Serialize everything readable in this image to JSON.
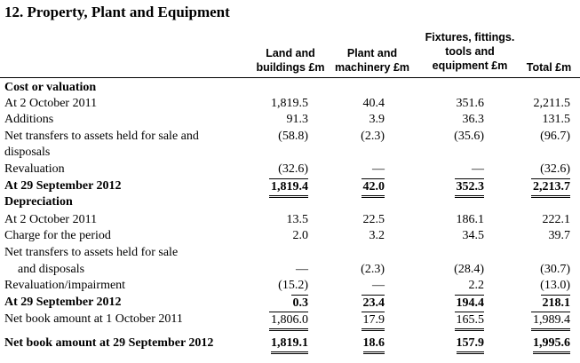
{
  "title": "12. Property, Plant and Equipment",
  "headers": {
    "land": [
      "Land and",
      "buildings £m"
    ],
    "plant": [
      "Plant and",
      "machinery £m"
    ],
    "fixtures": [
      "Fixtures, fittings.",
      "tools and",
      "equipment £m"
    ],
    "total": [
      "Total £m"
    ]
  },
  "rows": [
    {
      "label": "Cost or valuation",
      "bold": true,
      "values": [
        "",
        "",
        "",
        ""
      ]
    },
    {
      "label": "At 2 October 2011",
      "values": [
        "1,819.5",
        "40.4",
        "351.6",
        "2,211.5"
      ]
    },
    {
      "label": "Additions",
      "values": [
        "91.3",
        "3.9",
        "36.3",
        "131.5"
      ]
    },
    {
      "label": "Net transfers to assets held for sale and",
      "values": [
        "(58.8)",
        "(2.3)",
        "(35.6)",
        "(96.7)"
      ]
    },
    {
      "label": "disposals",
      "values": [
        "",
        "",
        "",
        ""
      ]
    },
    {
      "label": "Revaluation",
      "values": [
        "(32.6)",
        "—",
        "—",
        "(32.6)"
      ]
    },
    {
      "label": "At 29 September 2012",
      "bold": true,
      "values": [
        "1,819.4",
        "42.0",
        "352.3",
        "2,213.7"
      ]
    },
    {
      "label": "Depreciation",
      "bold": true,
      "values": [
        "",
        "",
        "",
        ""
      ]
    },
    {
      "label": "At 2 October 2011",
      "values": [
        "13.5",
        "22.5",
        "186.1",
        "222.1"
      ]
    },
    {
      "label": "Charge for the period",
      "values": [
        "2.0",
        "3.2",
        "34.5",
        "39.7"
      ]
    },
    {
      "label": "Net transfers to assets held for sale",
      "values": [
        "",
        "",
        "",
        ""
      ]
    },
    {
      "label": "and disposals",
      "values": [
        "—",
        "(2.3)",
        "(28.4)",
        "(30.7)"
      ]
    },
    {
      "label": "Revaluation/impairment",
      "values": [
        "(15.2)",
        "—",
        "2.2",
        "(13.0)"
      ]
    },
    {
      "label": "At 29 September 2012",
      "bold": true,
      "values": [
        "0.3",
        "23.4",
        "194.4",
        "218.1"
      ]
    },
    {
      "label": "Net book amount at 1 October 2011",
      "values": [
        "1,806.0",
        "17.9",
        "165.5",
        "1,989.4"
      ]
    },
    {
      "label": "Net book amount at 29 September 2012",
      "bold": true,
      "values": [
        "1,819.1",
        "18.6",
        "157.9",
        "1,995.6"
      ]
    }
  ]
}
